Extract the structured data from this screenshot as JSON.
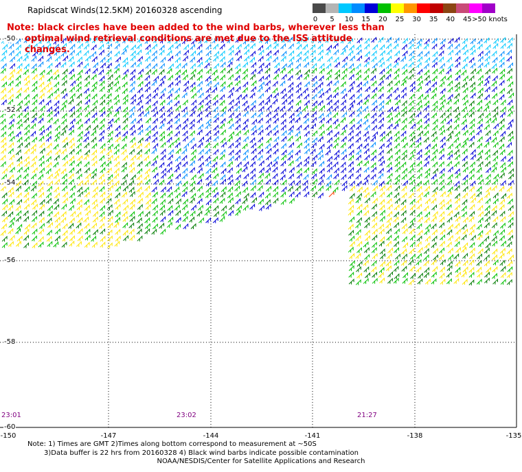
{
  "title": "Rapidscat Winds(12.5KM) 20160328 ascending",
  "note_line1": "Note: black circles have been added to the wind barbs, wherever less than",
  "note_line2": "optimal wind retrieval conditions are met due to the ISS attitude changes.",
  "legend": {
    "labels": [
      "0",
      "5",
      "10",
      "15",
      "20",
      "25",
      "30",
      "35",
      "40",
      "45",
      ">50 knots"
    ],
    "colors": [
      "#4a4a4a",
      "#b4b4b4",
      "#00c8ff",
      "#008cff",
      "#0000d8",
      "#00c000",
      "#ffff00",
      "#ff9600",
      "#ff0000",
      "#c00000",
      "#8b4513",
      "#c84b78",
      "#ff00ff",
      "#a000c8"
    ]
  },
  "map": {
    "lat_labels": [
      "-50",
      "-52",
      "-54",
      "-56",
      "-58",
      "-60"
    ],
    "lon_labels": [
      "-150",
      "-147",
      "-144",
      "-141",
      "-138",
      "-135"
    ],
    "time_labels": [
      "23:01",
      "23:02",
      "21:27"
    ],
    "grid_color": "#000000"
  },
  "footer": {
    "line1": "Note: 1) Times are GMT 2)Times along bottom correspond to measurement at ~50S",
    "line2": "3)Data buffer is 22 hrs from 20160328 4) Black wind barbs indicate possible contamination",
    "credit": "NOAA/NESDIS/Center for Satellite Applications and Research"
  }
}
